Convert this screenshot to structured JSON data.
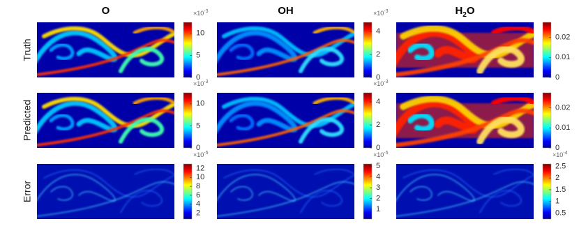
{
  "figure": {
    "columns": [
      {
        "title": [
          {
            "text": "O"
          }
        ]
      },
      {
        "title": [
          {
            "text": "OH"
          }
        ]
      },
      {
        "title": [
          {
            "text": "H"
          },
          {
            "text": "2",
            "sub": true
          },
          {
            "text": "O"
          }
        ]
      }
    ],
    "rows": [
      {
        "label": "Truth",
        "colorbars": [
          {
            "exponent": {
              "base": "×10",
              "power": "-3"
            },
            "lim": [
              0,
              12.5
            ],
            "ticks": [
              0,
              5,
              10
            ]
          },
          {
            "exponent": {
              "base": "×10",
              "power": "-3"
            },
            "lim": [
              0,
              4.8
            ],
            "ticks": [
              0,
              2,
              4
            ]
          },
          {
            "lim": [
              0,
              0.0275
            ],
            "ticks": [
              0,
              0.01,
              0.02
            ]
          }
        ]
      },
      {
        "label": "Predicted",
        "colorbars": [
          {
            "exponent": {
              "base": "×10",
              "power": "-3"
            },
            "lim": [
              0,
              12.5
            ],
            "ticks": [
              0,
              5,
              10
            ]
          },
          {
            "exponent": {
              "base": "×10",
              "power": "-3"
            },
            "lim": [
              0,
              4.8
            ],
            "ticks": [
              0,
              2,
              4
            ]
          },
          {
            "lim": [
              0,
              0.0275
            ],
            "ticks": [
              0,
              0.01,
              0.02
            ]
          }
        ]
      },
      {
        "label": "Error",
        "colorbars": [
          {
            "exponent": {
              "base": "×10",
              "power": "-5"
            },
            "lim": [
              0.7,
              13
            ],
            "ticks": [
              2,
              4,
              6,
              8,
              10,
              12
            ]
          },
          {
            "exponent": {
              "base": "×10",
              "power": "-5"
            },
            "lim": [
              0.1,
              5.2
            ],
            "ticks": [
              1,
              2,
              3,
              4,
              5
            ]
          },
          {
            "exponent": {
              "base": "×10",
              "power": "-4"
            },
            "lim": [
              0.25,
              2.6
            ],
            "ticks": [
              0.5,
              1,
              1.5,
              2,
              2.5
            ]
          }
        ]
      }
    ]
  }
}
